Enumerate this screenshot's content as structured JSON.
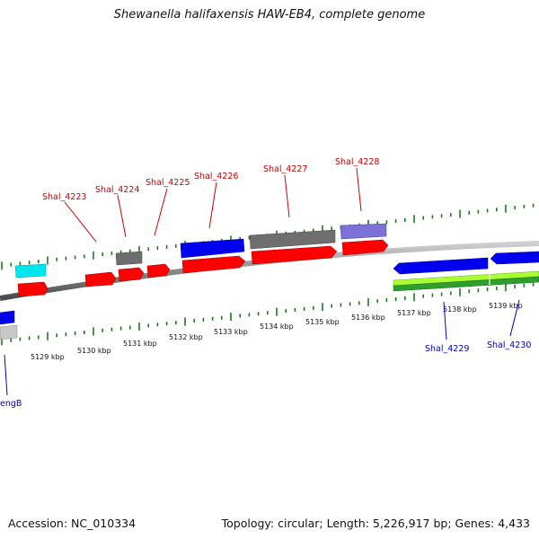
{
  "header": {
    "title": "Shewanella halifaxensis HAW-EB4, complete genome"
  },
  "footer": {
    "accession": "Accession: NC_010334",
    "summary": "Topology: circular; Length: 5,226,917 bp; Genes: 4,433"
  },
  "colors": {
    "forward_cds": "#ff0000",
    "reverse_cds": "#0000ee",
    "grey_feature": "#6e6e6e",
    "light_grey_feature": "#c8c8c8",
    "cyan_feature": "#00e6ee",
    "purple_feature": "#7b71d6",
    "lime_feature": "#aaff33",
    "green_feature": "#2e9e2e",
    "tick_green": "#1a7a1a",
    "forward_label": "#cc0000",
    "reverse_label": "#0000cc",
    "backbone": "#888888"
  },
  "axis": {
    "unit": "kbp",
    "tick_labels": [
      "5129 kbp",
      "5130 kbp",
      "5131 kbp",
      "5132 kbp",
      "5133 kbp",
      "5134 kbp",
      "5135 kbp",
      "5136 kbp",
      "5137 kbp",
      "5138 kbp",
      "5139 kbp"
    ]
  },
  "gene_labels": {
    "forward": [
      "Shal_4223",
      "Shal_4224",
      "Shal_4225",
      "Shal_4226",
      "Shal_4227",
      "Shal_4228"
    ],
    "reverse": [
      "Shal_4229",
      "Shal_4230",
      "engB"
    ]
  }
}
